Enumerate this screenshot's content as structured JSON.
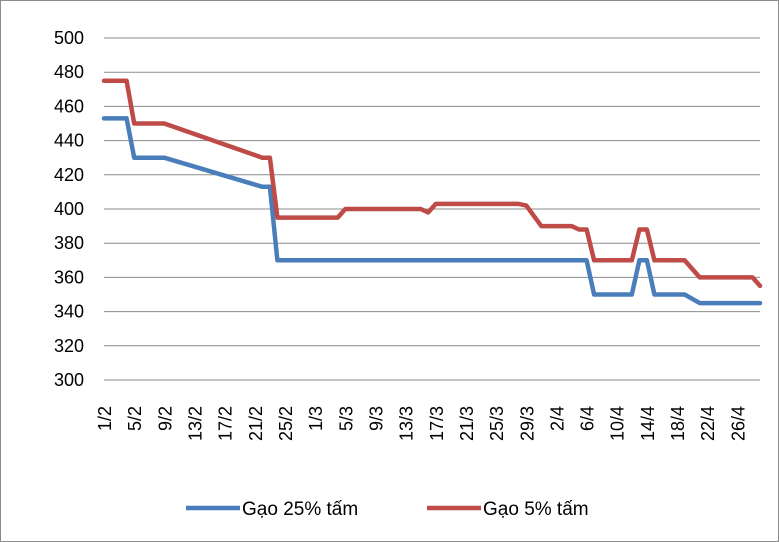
{
  "chart_data": {
    "type": "line",
    "title": "",
    "xlabel": "",
    "ylabel": "",
    "ylim": [
      300,
      500
    ],
    "yticks": [
      "500",
      "480",
      "460",
      "440",
      "420",
      "400",
      "380",
      "360",
      "340",
      "320",
      "300"
    ],
    "grid": true,
    "legend_position": "bottom",
    "x_tick_labels": [
      "1/2",
      "5/2",
      "9/2",
      "13/2",
      "17/2",
      "21/2",
      "25/2",
      "1/3",
      "5/3",
      "9/3",
      "13/3",
      "17/3",
      "21/3",
      "25/3",
      "29/3",
      "2/4",
      "6/4",
      "10/4",
      "14/4",
      "18/4",
      "22/4",
      "26/4"
    ],
    "series": [
      {
        "name": "Gạo 25% tấm",
        "color": "#4a7ebb",
        "points": [
          [
            "1/2",
            453
          ],
          [
            "4/2",
            453
          ],
          [
            "5/2",
            430
          ],
          [
            "9/2",
            430
          ],
          [
            "22/2",
            413
          ],
          [
            "23/2",
            413
          ],
          [
            "24/2",
            370
          ],
          [
            "6/4",
            370
          ],
          [
            "7/4",
            350
          ],
          [
            "12/4",
            350
          ],
          [
            "13/4",
            370
          ],
          [
            "14/4",
            370
          ],
          [
            "15/4",
            350
          ],
          [
            "19/4",
            350
          ],
          [
            "21/4",
            345
          ],
          [
            "29/4",
            345
          ]
        ]
      },
      {
        "name": "Gạo 5% tấm",
        "color": "#be4b48",
        "points": [
          [
            "1/2",
            475
          ],
          [
            "4/2",
            475
          ],
          [
            "5/2",
            450
          ],
          [
            "9/2",
            450
          ],
          [
            "22/2",
            430
          ],
          [
            "23/2",
            430
          ],
          [
            "24/2",
            395
          ],
          [
            "4/3",
            395
          ],
          [
            "5/3",
            400
          ],
          [
            "15/3",
            400
          ],
          [
            "16/3",
            398
          ],
          [
            "17/3",
            403
          ],
          [
            "28/3",
            403
          ],
          [
            "29/3",
            402
          ],
          [
            "31/3",
            390
          ],
          [
            "4/4",
            390
          ],
          [
            "5/4",
            388
          ],
          [
            "6/4",
            388
          ],
          [
            "7/4",
            370
          ],
          [
            "12/4",
            370
          ],
          [
            "13/4",
            388
          ],
          [
            "14/4",
            388
          ],
          [
            "15/4",
            370
          ],
          [
            "19/4",
            370
          ],
          [
            "21/4",
            360
          ],
          [
            "28/4",
            360
          ],
          [
            "29/4",
            355
          ]
        ]
      }
    ]
  }
}
